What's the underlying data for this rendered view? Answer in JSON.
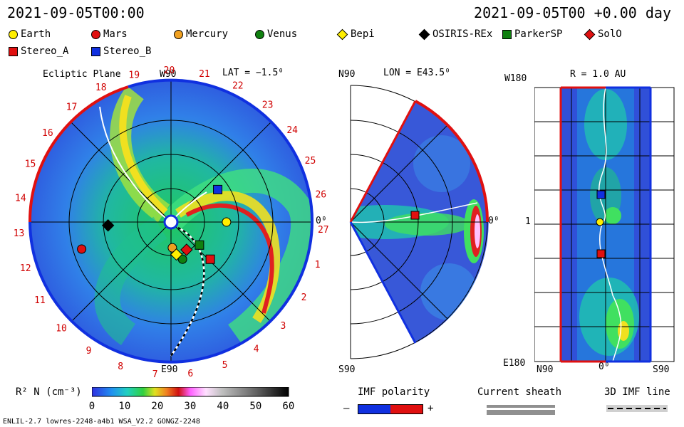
{
  "header": {
    "left_time": "2021-09-05T00:00",
    "right_time": "2021-09-05T00 +0.00 day"
  },
  "legend": [
    {
      "label": "Earth",
      "color": "#ffee00",
      "shape": "circle"
    },
    {
      "label": "Mars",
      "color": "#e01010",
      "shape": "circle"
    },
    {
      "label": "Mercury",
      "color": "#f0a020",
      "shape": "circle"
    },
    {
      "label": "Venus",
      "color": "#108010",
      "shape": "circle"
    },
    {
      "label": "Bepi",
      "color": "#ffee00",
      "shape": "diamond"
    },
    {
      "label": "OSIRIS-REx",
      "color": "#000000",
      "shape": "diamond"
    },
    {
      "label": "ParkerSP",
      "color": "#108010",
      "shape": "square"
    },
    {
      "label": "SolO",
      "color": "#e01010",
      "shape": "diamond"
    },
    {
      "label": "Stereo_A",
      "color": "#e01010",
      "shape": "square"
    },
    {
      "label": "Stereo_B",
      "color": "#1030e0",
      "shape": "square"
    }
  ],
  "panels": {
    "ecliptic": {
      "title": "Ecliptic Plane",
      "top_label": "W90",
      "bottom_label": "E90",
      "lat_label": "LAT = −1.5⁰",
      "right_label": "0⁰"
    },
    "meridional": {
      "top_label": "N90",
      "bottom_label": "S90",
      "lon_label": "LON = E43.5⁰",
      "right_label": "0⁰"
    },
    "radial": {
      "top_label": "W180",
      "bottom_label": "E180",
      "r_label": "R = 1.0 AU",
      "mid_label": "1",
      "x_left": "N90",
      "x_mid": "0⁰",
      "x_right": "S90"
    }
  },
  "colorbar": {
    "label": "R² N (cm⁻³)",
    "ticks": [
      "0",
      "10",
      "20",
      "30",
      "40",
      "50",
      "60"
    ]
  },
  "bottom": {
    "imf_polarity": "IMF polarity",
    "minus": "–",
    "plus": "+",
    "current_sheath": "Current sheath",
    "imf_line": "3D IMF line",
    "footer": "ENLIL-2.7 lowres-2248-a4b1 WSA_V2.2 GONGZ-2248"
  },
  "chart_data": {
    "type": "heatmap",
    "colors": {
      "imf_negative": "#1030e0",
      "imf_positive": "#e01010",
      "background_fill": "#2f6be0"
    },
    "carrington_ticks": [
      "19",
      "20",
      "21",
      "22",
      "23",
      "24",
      "25",
      "26",
      "27",
      "1",
      "2",
      "3",
      "4",
      "5",
      "6",
      "7",
      "8",
      "9",
      "10",
      "11",
      "12",
      "13",
      "14",
      "15",
      "16",
      "17",
      "18"
    ],
    "colorbar_range": [
      0,
      60
    ],
    "bodies_ecliptic": [
      {
        "name": "Earth",
        "x": 0.82,
        "y": 0.0
      },
      {
        "name": "Mars",
        "x": -1.32,
        "y": -0.4
      },
      {
        "name": "Mercury",
        "x": 0.02,
        "y": -0.38
      },
      {
        "name": "Venus",
        "x": 0.17,
        "y": -0.55
      },
      {
        "name": "Bepi",
        "x": 0.08,
        "y": -0.48
      },
      {
        "name": "OSIRIS-REx",
        "x": -0.93,
        "y": -0.05
      },
      {
        "name": "ParkerSP",
        "x": 0.42,
        "y": -0.34
      },
      {
        "name": "SolO",
        "x": 0.23,
        "y": -0.41
      },
      {
        "name": "Stereo_A",
        "x": 0.58,
        "y": -0.55
      },
      {
        "name": "Stereo_B",
        "x": 0.69,
        "y": 0.48
      }
    ]
  }
}
